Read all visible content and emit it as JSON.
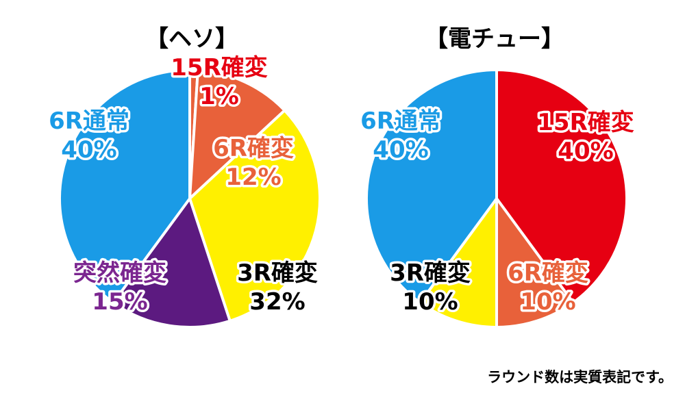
{
  "chart_data": [
    {
      "type": "pie",
      "title": "【ヘソ】",
      "slices": [
        {
          "name": "15R確変",
          "value": 1,
          "label": "1%",
          "color": "#e8613a",
          "label_color": "#e60012"
        },
        {
          "name": "6R確変",
          "value": 12,
          "label": "12%",
          "color": "#e8613a",
          "label_color": "#e8613a"
        },
        {
          "name": "3R確変",
          "value": 32,
          "label": "32%",
          "color": "#fff000",
          "label_color": "#000000"
        },
        {
          "name": "突然確変",
          "value": 15,
          "label": "15%",
          "color": "#5c1a80",
          "label_color": "#7b2690"
        },
        {
          "name": "6R通常",
          "value": 40,
          "label": "40%",
          "color": "#1a9be6",
          "label_color": "#1a9be6"
        }
      ]
    },
    {
      "type": "pie",
      "title": "【電チュー】",
      "slices": [
        {
          "name": "15R確変",
          "value": 40,
          "label": "40%",
          "color": "#e60012",
          "label_color": "#e60012"
        },
        {
          "name": "6R確変",
          "value": 10,
          "label": "10%",
          "color": "#e8613a",
          "label_color": "#e8613a"
        },
        {
          "name": "3R確変",
          "value": 10,
          "label": "10%",
          "color": "#fff000",
          "label_color": "#000000"
        },
        {
          "name": "6R通常",
          "value": 40,
          "label": "40%",
          "color": "#1a9be6",
          "label_color": "#1a9be6"
        }
      ]
    }
  ],
  "footnote": "ラウンド数は実質表記です。"
}
